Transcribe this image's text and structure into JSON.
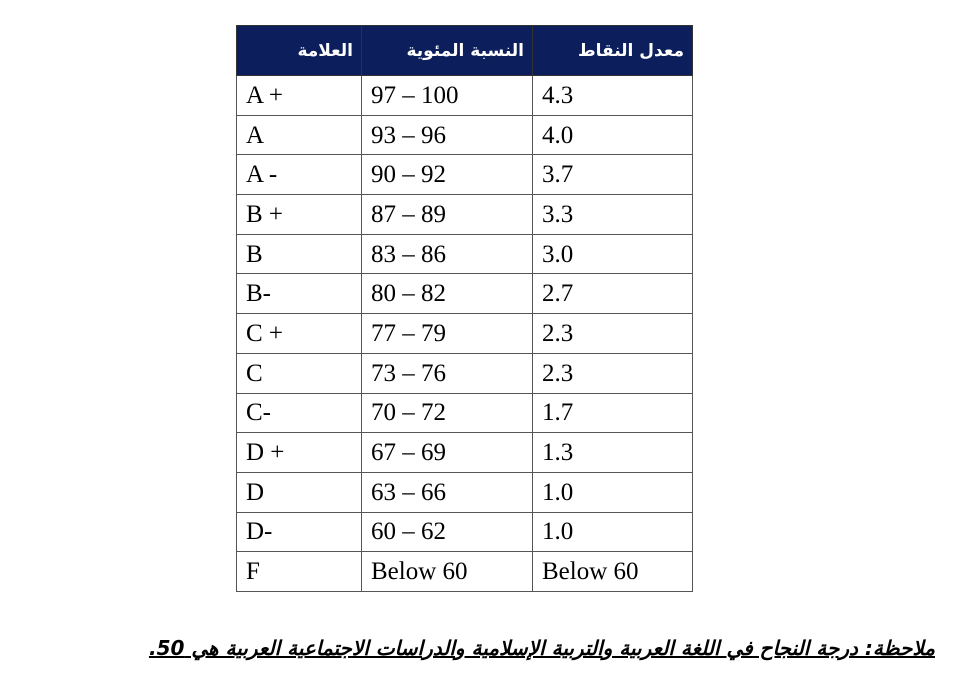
{
  "table": {
    "headers": [
      "العلامة",
      "النسبة المئوية",
      "معدل النقاط"
    ],
    "rows": [
      [
        "A +",
        "97 – 100",
        "4.3"
      ],
      [
        "A",
        "93 – 96",
        "4.0"
      ],
      [
        "A -",
        "90 – 92",
        "3.7"
      ],
      [
        "B +",
        "87 – 89",
        "3.3"
      ],
      [
        "B",
        "83 – 86",
        "3.0"
      ],
      [
        "B-",
        "80 – 82",
        "2.7"
      ],
      [
        "C +",
        "77 – 79",
        "2.3"
      ],
      [
        "C",
        "73 – 76",
        "2.3"
      ],
      [
        "C-",
        "70 – 72",
        "1.7"
      ],
      [
        "D +",
        "67 – 69",
        "1.3"
      ],
      [
        "D",
        "63 – 66",
        "1.0"
      ],
      [
        "D-",
        "60 – 62",
        "1.0"
      ],
      [
        "F",
        "Below 60",
        "Below 60"
      ]
    ]
  },
  "note": "ملاحظة: درجة النجاح في اللغة العربية والتربية الإسلامية والدراسات الاجتماعية العربية هي 50.",
  "colors": {
    "header_bg": "#0c1f5c",
    "header_text": "#ffffff"
  }
}
